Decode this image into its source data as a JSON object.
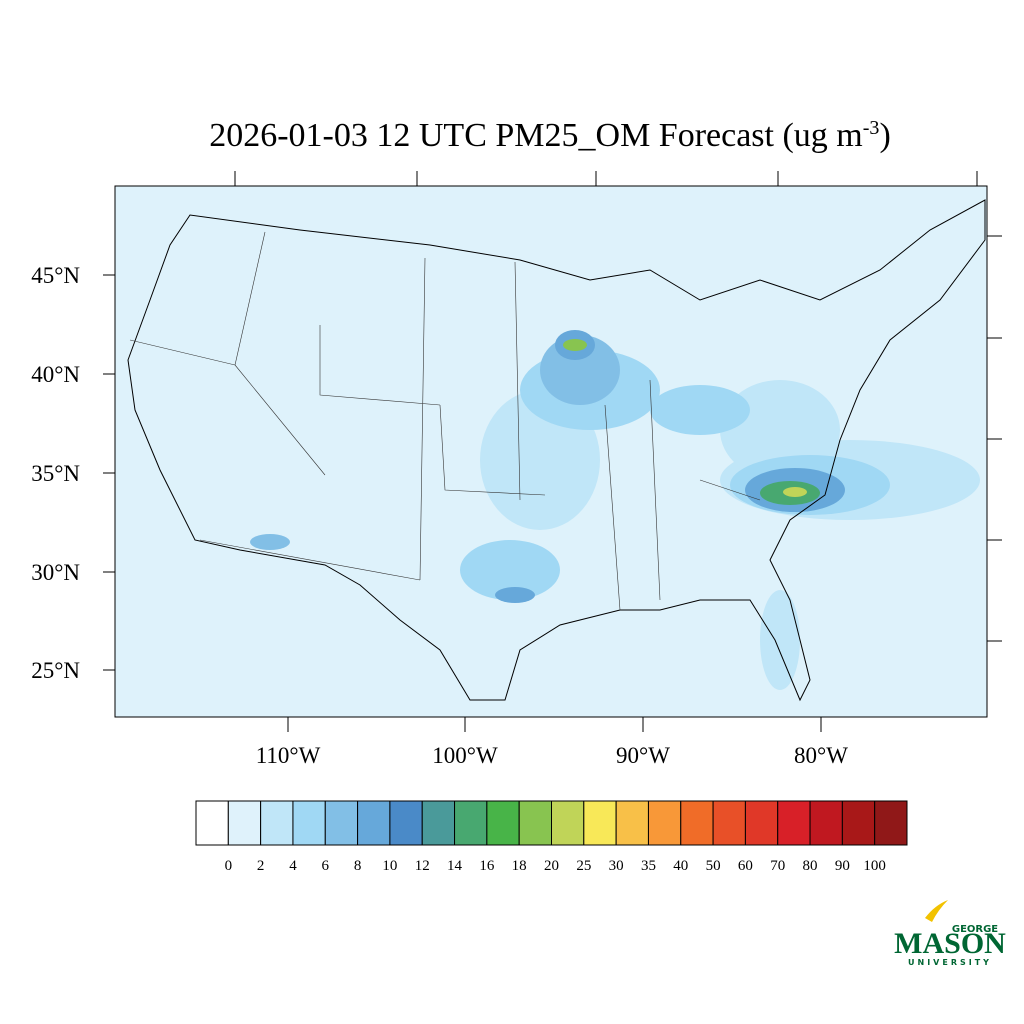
{
  "title": {
    "main": "2026-01-03 12 UTC PM25_OM Forecast (ug m",
    "superscript": "-3",
    "close": ")"
  },
  "map": {
    "lat_labels": [
      "45°N",
      "40°N",
      "35°N",
      "30°N",
      "25°N"
    ],
    "lon_labels": [
      "110°W",
      "100°W",
      "90°W",
      "80°W"
    ]
  },
  "colorbar": {
    "levels": [
      0,
      2,
      4,
      6,
      8,
      10,
      12,
      14,
      16,
      18,
      20,
      25,
      30,
      35,
      40,
      50,
      60,
      70,
      80,
      90,
      100
    ],
    "colors": [
      "#ffffff",
      "#dff2fb",
      "#c0e6f8",
      "#a0d8f4",
      "#82bfe6",
      "#66a8da",
      "#4a8ac8",
      "#4a9a9a",
      "#48a870",
      "#48b448",
      "#88c450",
      "#c0d458",
      "#f8e858",
      "#f8c048",
      "#f89838",
      "#f06c28",
      "#e85028",
      "#e03828",
      "#d82028",
      "#c01820",
      "#a81818",
      "#901818"
    ]
  },
  "logo": {
    "top": "GEORGE",
    "name": "MASON",
    "bottom": "UNIVERSITY"
  }
}
